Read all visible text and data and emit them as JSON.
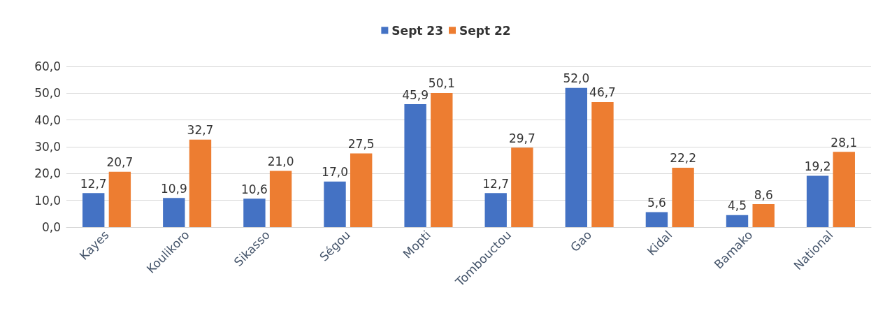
{
  "chart_data": {
    "type": "bar",
    "categories": [
      "Kayes",
      "Koulikoro",
      "Sikasso",
      "Ségou",
      "Mopti",
      "Tombouctou",
      "Gao",
      "Kidal",
      "Bamako",
      "National"
    ],
    "series": [
      {
        "name": "Sept 23",
        "color": "#4472c4",
        "values": [
          12.7,
          10.9,
          10.6,
          17.0,
          45.9,
          12.7,
          52.0,
          5.6,
          4.5,
          19.2
        ],
        "value_labels": [
          "12,7",
          "10,9",
          "10,6",
          "17,0",
          "45,9",
          "12,7",
          "52,0",
          "5,6",
          "4,5",
          "19,2"
        ]
      },
      {
        "name": "Sept 22",
        "color": "#ed7d31",
        "values": [
          20.7,
          32.7,
          21.0,
          27.5,
          50.1,
          29.7,
          46.7,
          22.2,
          8.6,
          28.1
        ],
        "value_labels": [
          "20,7",
          "32,7",
          "21,0",
          "27,5",
          "50,1",
          "29,7",
          "46,7",
          "22,2",
          "8,6",
          "28,1"
        ]
      }
    ],
    "ylim": [
      0,
      60
    ],
    "yticks": [
      {
        "value": 0,
        "label": "0,0"
      },
      {
        "value": 10,
        "label": "10,0"
      },
      {
        "value": 20,
        "label": "20,0"
      },
      {
        "value": 30,
        "label": "30,0"
      },
      {
        "value": 40,
        "label": "40,0"
      },
      {
        "value": 50,
        "label": "50,0"
      },
      {
        "value": 60,
        "label": "60,0"
      }
    ],
    "grid": "y",
    "legend": "top"
  }
}
